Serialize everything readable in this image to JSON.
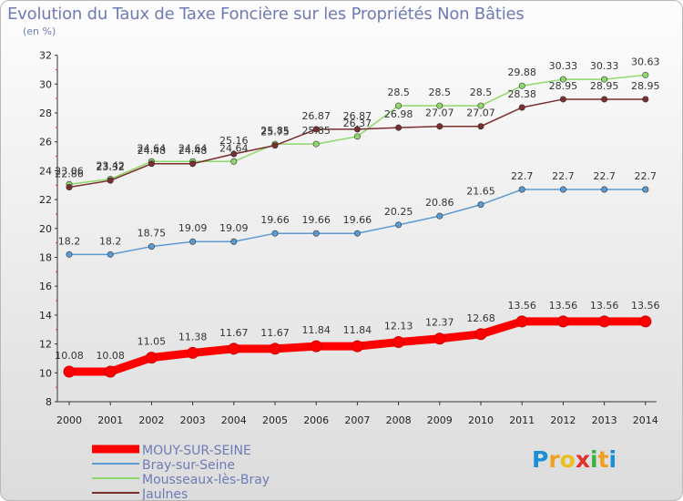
{
  "header": {
    "title": "Evolution du Taux de Taxe Foncière sur les Propriétés Non Bâties",
    "unit": "(en %)"
  },
  "brand": {
    "letters": [
      "P",
      "r",
      "o",
      "x",
      "i",
      "t",
      "i"
    ],
    "colors": [
      "#1a8fd6",
      "#f0a020",
      "#e8c020",
      "#e03030",
      "#40b040",
      "#f0a020",
      "#1a8fd6"
    ]
  },
  "chart_data": {
    "type": "line",
    "title": "Evolution du Taux de Taxe Foncière sur les Propriétés Non Bâties",
    "ylabel": "(en %)",
    "xlabel": "",
    "ylim": [
      8,
      32
    ],
    "yticks": [
      8,
      10,
      12,
      14,
      16,
      18,
      20,
      22,
      24,
      26,
      28,
      30,
      32
    ],
    "grid": false,
    "legend_position": "bottom-left",
    "x": [
      "2000",
      "2001",
      "2002",
      "2003",
      "2004",
      "2005",
      "2006",
      "2007",
      "2008",
      "2009",
      "2010",
      "2011",
      "2012",
      "2013",
      "2014"
    ],
    "series": [
      {
        "name": "MOUY-SUR-SEINE",
        "color": "#ff0000",
        "labels": [
          "10.08",
          "10.08",
          "11.05",
          "11.38",
          "11.67",
          "11.67",
          "11.84",
          "11.84",
          "12.13",
          "12.37",
          "12.68",
          "13.56",
          "13.56",
          "13.56",
          "13.56"
        ],
        "values": [
          10.08,
          10.08,
          11.05,
          11.38,
          11.67,
          11.67,
          11.84,
          11.84,
          12.13,
          12.37,
          12.68,
          13.56,
          13.56,
          13.56,
          13.56
        ]
      },
      {
        "name": "Bray-sur-Seine",
        "color": "#5b9bd5",
        "labels": [
          "18.2",
          "18.2",
          "18.75",
          "19.09",
          "19.09",
          "19.66",
          "19.66",
          "19.66",
          "20.25",
          "20.86",
          "21.65",
          "22.7",
          "22.7",
          "22.7",
          "22.7"
        ],
        "values": [
          18.2,
          18.2,
          18.75,
          19.09,
          19.09,
          19.66,
          19.66,
          19.66,
          20.25,
          20.86,
          21.65,
          22.7,
          22.7,
          22.7,
          22.7
        ]
      },
      {
        "name": "Mousseaux-lès-Bray",
        "color": "#8ed86a",
        "labels": [
          "23.06",
          "23.42",
          "24.64",
          "24.64",
          "24.64",
          "25.85",
          "25.85",
          "26.37",
          "28.5",
          "28.5",
          "28.5",
          "29.88",
          "30.33",
          "30.33",
          "30.63"
        ],
        "values": [
          23.06,
          23.42,
          24.64,
          24.64,
          24.64,
          25.85,
          25.85,
          26.37,
          28.5,
          28.5,
          28.5,
          29.88,
          30.33,
          30.33,
          30.63
        ]
      },
      {
        "name": "Jaulnes",
        "color": "#7a2e2e",
        "labels": [
          "22.86",
          "23.32",
          "24.48",
          "24.48",
          "25.16",
          "25.75",
          "26.87",
          "26.87",
          "26.98",
          "27.07",
          "27.07",
          "28.38",
          "28.95",
          "28.95",
          "28.95"
        ],
        "values": [
          22.86,
          23.32,
          24.48,
          24.48,
          25.16,
          25.75,
          26.87,
          26.87,
          26.98,
          27.07,
          27.07,
          28.38,
          28.95,
          28.95,
          28.95
        ]
      }
    ]
  }
}
